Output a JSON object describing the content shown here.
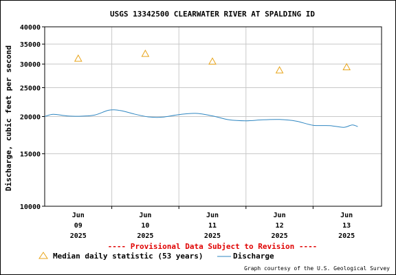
{
  "chart_data": {
    "type": "line",
    "title": "USGS 13342500 CLEARWATER RIVER AT SPALDING ID",
    "ylabel": "Discharge, cubic feet per second",
    "y_scale": "log",
    "ylim": [
      10000,
      40000
    ],
    "y_ticks": [
      "10000",
      "15000",
      "20000",
      "25000",
      "30000",
      "35000",
      "40000"
    ],
    "y_tick_values": [
      10000,
      15000,
      20000,
      25000,
      30000,
      35000,
      40000
    ],
    "x_ticks": [
      {
        "month": "Jun",
        "day": "09",
        "year": "2025"
      },
      {
        "month": "Jun",
        "day": "10",
        "year": "2025"
      },
      {
        "month": "Jun",
        "day": "11",
        "year": "2025"
      },
      {
        "month": "Jun",
        "day": "12",
        "year": "2025"
      },
      {
        "month": "Jun",
        "day": "13",
        "year": "2025"
      }
    ],
    "xlim": [
      "2025-06-08 12:00",
      "2025-06-13 12:30"
    ],
    "grid": true,
    "series": [
      {
        "name": "Discharge",
        "color": "#2e86c1",
        "x": [
          "2025-06-08 12:00",
          "2025-06-08 15:00",
          "2025-06-08 20:00",
          "2025-06-09 01:00",
          "2025-06-09 06:00",
          "2025-06-09 11:00",
          "2025-06-09 15:00",
          "2025-06-09 20:00",
          "2025-06-10 01:00",
          "2025-06-10 06:00",
          "2025-06-10 12:00",
          "2025-06-10 18:00",
          "2025-06-11 00:00",
          "2025-06-11 06:00",
          "2025-06-11 12:00",
          "2025-06-11 18:00",
          "2025-06-12 00:00",
          "2025-06-12 06:00",
          "2025-06-12 12:00",
          "2025-06-12 18:00",
          "2025-06-12 23:00",
          "2025-06-13 02:00",
          "2025-06-13 04:00"
        ],
        "values": [
          20000,
          20350,
          20100,
          20050,
          20250,
          21000,
          20950,
          20400,
          19950,
          19900,
          20300,
          20500,
          20100,
          19500,
          19350,
          19500,
          19550,
          19300,
          18700,
          18650,
          18400,
          18750,
          18500
        ]
      },
      {
        "name": "Median daily statistic (53 years)",
        "color": "#e8a317",
        "marker": "triangle",
        "x": [
          "2025-06-09 00:00",
          "2025-06-10 00:00",
          "2025-06-11 00:00",
          "2025-06-12 00:00",
          "2025-06-13 00:00"
        ],
        "values": [
          31300,
          32500,
          30600,
          28600,
          29300
        ]
      }
    ]
  },
  "provisional_text": "---- Provisional Data Subject to Revision ----",
  "legend": {
    "median_label": "Median daily statistic (53 years)",
    "discharge_label": "Discharge"
  },
  "credit": "Graph courtesy of the U.S. Geological Survey",
  "colors": {
    "grid": "#c8c8c8",
    "discharge": "#2e86c1",
    "median": "#e8a317",
    "provisional": "#e00000"
  }
}
